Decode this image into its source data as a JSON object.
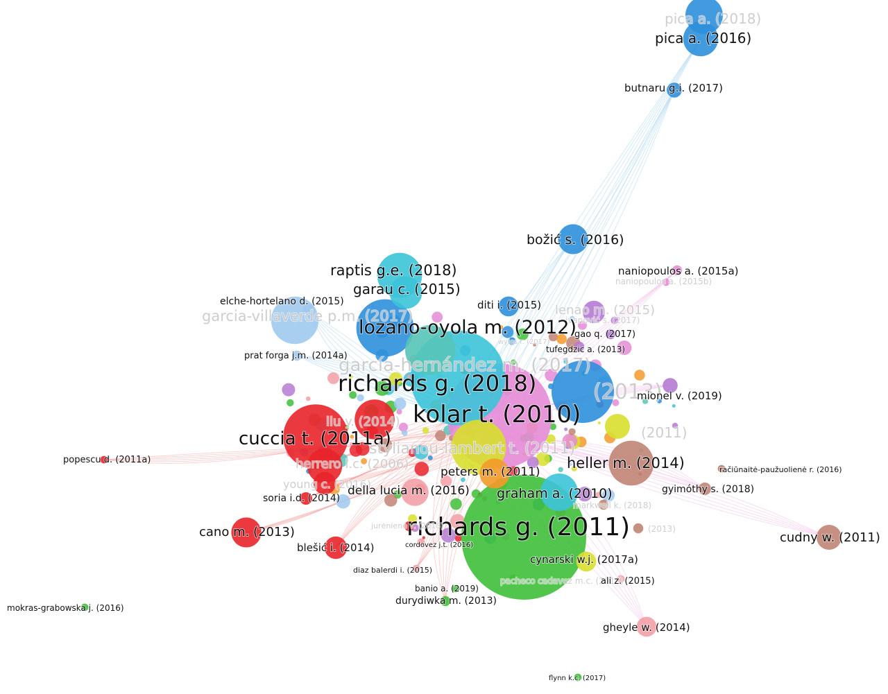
{
  "colors": {
    "red": "#e8252b",
    "green": "#3fbf3a",
    "blue": "#2e8fdc",
    "lightblue": "#9fc9ee",
    "cyan": "#3cc3d8",
    "pink": "#e58bd6",
    "yellow": "#d7df2d",
    "brown": "#c08474",
    "purple": "#b67ad4",
    "orange": "#f39a2a",
    "salmon": "#f2a0a6",
    "teal": "#56c4b8",
    "edge_red": "#f2a0a0",
    "edge_blue": "#9fd0ee",
    "edge_pink": "#f1b6e6",
    "label_dark": "#111111",
    "label_faded": "#bdbdbd"
  },
  "nodes": [
    {
      "id": "pica-a-2018",
      "label": "pica a. (2018)",
      "color": "blue",
      "weight": 1.5,
      "faded": true
    },
    {
      "id": "pica-a-2016",
      "label": "pica a. (2016)",
      "color": "blue",
      "weight": 1.4
    },
    {
      "id": "butnaru-2017",
      "label": "butnaru g.i. (2017)",
      "color": "blue",
      "weight": 0.6
    },
    {
      "id": "bozic-2016",
      "label": "božić s. (2016)",
      "color": "blue",
      "weight": 1.2
    },
    {
      "id": "raptis-2018",
      "label": "raptis g.e. (2018)",
      "color": "cyan",
      "weight": 1.8
    },
    {
      "id": "garau-2015",
      "label": "garau c. (2015)",
      "color": "cyan",
      "weight": 1.3
    },
    {
      "id": "naniopoulos-2015a",
      "label": "naniopoulos a. (2015a)",
      "color": "pink",
      "weight": 0.4
    },
    {
      "id": "naniopoulos-2015b",
      "label": "naniopoulos a. (2015b)",
      "color": "pink",
      "weight": 0.3,
      "faded": true
    },
    {
      "id": "elche-2015",
      "label": "elche-hortelano d. (2015)",
      "color": "lightblue",
      "weight": 0.5
    },
    {
      "id": "garcia-villaverde",
      "label": "garcia-villaverde p.m. (2017)",
      "color": "lightblue",
      "weight": 1.9,
      "faded": true
    },
    {
      "id": "diti-2015",
      "label": "diti i. (2015)",
      "color": "blue",
      "weight": 0.8
    },
    {
      "id": "lenao-2015",
      "label": "lenao m. (2015)",
      "color": "purple",
      "weight": 0.9,
      "faded": true
    },
    {
      "id": "ivanovic-2017",
      "label": "ivanović s. (2017)",
      "color": "purple",
      "weight": 0.3,
      "faded": true
    },
    {
      "id": "lozano-2012",
      "label": "lozano-oyola m. (2012)",
      "color": "blue",
      "weight": 2.3
    },
    {
      "id": "gao-2017",
      "label": "gao q. (2017)",
      "color": "purple",
      "weight": 0.4
    },
    {
      "id": "prat-2014a",
      "label": "prat forga j.m. (2014a)",
      "color": "lightblue",
      "weight": 0.4
    },
    {
      "id": "tufegdzic-2013",
      "label": "tufegdzic a. (2013)",
      "color": "purple",
      "weight": 0.4
    },
    {
      "id": "wyles-2017",
      "label": "wyles r. (2017)",
      "color": "blue",
      "weight": 0.3,
      "faded": true
    },
    {
      "id": "garcia-hernandez",
      "label": "garcía-hernández m. (2017)",
      "color": "teal",
      "weight": 2.0,
      "faded": true
    },
    {
      "id": "richards-2018",
      "label": "richards g. (2018)",
      "color": "cyan",
      "weight": 3.8
    },
    {
      "id": "blue-big-2013",
      "label": "(2013)",
      "color": "blue",
      "weight": 2.5,
      "faded": true
    },
    {
      "id": "mionel-2019",
      "label": "mionel v. (2019)",
      "color": "purple",
      "weight": 0.6
    },
    {
      "id": "kolar-2010",
      "label": "kolar t. (2010)",
      "color": "pink",
      "weight": 4.2
    },
    {
      "id": "liu-2014",
      "label": "liu y. (2014)",
      "color": "red",
      "weight": 1.6,
      "faded": true
    },
    {
      "id": "cuccia-2011a",
      "label": "cuccia t. (2011a)",
      "color": "red",
      "weight": 2.6
    },
    {
      "id": "stylianou-2011",
      "label": "stylianou-lambert t. (2011)",
      "color": "yellow",
      "weight": 2.2,
      "faded": true
    },
    {
      "id": "faded-2011",
      "label": "(2011)",
      "color": "yellow",
      "weight": 1.0,
      "faded": true
    },
    {
      "id": "popescu-2011a",
      "label": "popescu d. (2011a)",
      "color": "red",
      "weight": 0.3
    },
    {
      "id": "heller-2014",
      "label": "heller m. (2014)",
      "color": "brown",
      "weight": 1.8
    },
    {
      "id": "herrero-2006",
      "label": "herrero l.c. (2006)",
      "color": "red",
      "weight": 1.4,
      "faded": true
    },
    {
      "id": "raciunaite-2016",
      "label": "račiūnaitė-paužuolienė r. (2016)",
      "color": "brown",
      "weight": 0.3
    },
    {
      "id": "peters-2011",
      "label": "peters m. (2011)",
      "color": "orange",
      "weight": 1.2
    },
    {
      "id": "young-2016",
      "label": "young c. (2016)",
      "color": "red",
      "weight": 0.9,
      "faded": true
    },
    {
      "id": "gyimothy-2018",
      "label": "gyimóthy s. (2018)",
      "color": "brown",
      "weight": 0.5
    },
    {
      "id": "soria-2014",
      "label": "soria i.d. (2014)",
      "color": "red",
      "weight": 0.5
    },
    {
      "id": "della-lucia-2016",
      "label": "della lucia m. (2016)",
      "color": "salmon",
      "weight": 1.1
    },
    {
      "id": "graham-2010",
      "label": "graham a. (2010)",
      "color": "cyan",
      "weight": 1.5
    },
    {
      "id": "markwell-2018",
      "label": "markwell k. (2018)",
      "color": "brown",
      "weight": 0.4,
      "faded": true
    },
    {
      "id": "richards-2011",
      "label": "richards g. (2011)",
      "color": "green",
      "weight": 5.0
    },
    {
      "id": "juneniene-2018",
      "label": "jurėnienė v. (2018)",
      "color": "red",
      "weight": 0.4,
      "faded": true
    },
    {
      "id": "cano-2013",
      "label": "cano m. (2013)",
      "color": "red",
      "weight": 1.2
    },
    {
      "id": "faded-2013",
      "label": "(2013)",
      "color": "brown",
      "weight": 0.4,
      "faded": true
    },
    {
      "id": "cudny-2011",
      "label": "cudny w. (2011)",
      "color": "brown",
      "weight": 1.0
    },
    {
      "id": "blesic-2014",
      "label": "blešić i. (2014)",
      "color": "red",
      "weight": 0.9
    },
    {
      "id": "cordovez-2016",
      "label": "cordovez j.t. (2016)",
      "color": "salmon",
      "weight": 0.3
    },
    {
      "id": "cynarski-2017a",
      "label": "cynarski w.j. (2017a)",
      "color": "yellow",
      "weight": 0.8
    },
    {
      "id": "diaz-balerdi-2015",
      "label": "diaz balerdi i. (2015)",
      "color": "salmon",
      "weight": 0.3
    },
    {
      "id": "pacheco-2016",
      "label": "pacheco cadavez m.c. (2016)",
      "color": "green",
      "weight": 0.3,
      "faded": true
    },
    {
      "id": "ali-2015",
      "label": "ali z. (2015)",
      "color": "salmon",
      "weight": 0.3
    },
    {
      "id": "banio-2019",
      "label": "banio a. (2019)",
      "color": "green",
      "weight": 0.3
    },
    {
      "id": "durydiwka-2013",
      "label": "durydiwka m. (2013)",
      "color": "green",
      "weight": 0.4
    },
    {
      "id": "mokras-2016",
      "label": "mokras-grabowska j. (2016)",
      "color": "green",
      "weight": 0.3
    },
    {
      "id": "gheyle-2014",
      "label": "gheyle w. (2014)",
      "color": "salmon",
      "weight": 0.8
    },
    {
      "id": "flynn-2017",
      "label": "flynn k.c. (2017)",
      "color": "green",
      "weight": 0.3
    }
  ]
}
